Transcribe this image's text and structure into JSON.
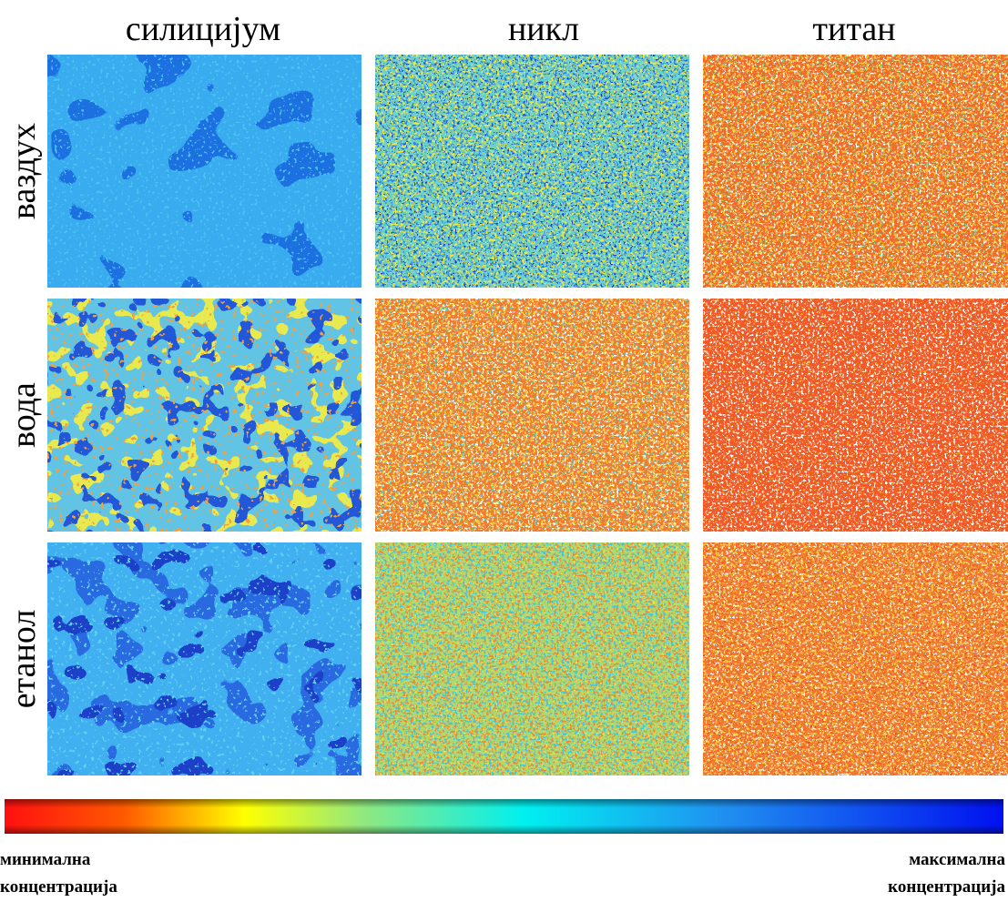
{
  "columns": [
    "силицијум",
    "никл",
    "титан"
  ],
  "rows": [
    "ваздух",
    "вода",
    "етанол"
  ],
  "colorbar": {
    "min_label": [
      "минимална",
      "концентрација"
    ],
    "max_label": [
      "максимална",
      "концентрација"
    ]
  }
}
